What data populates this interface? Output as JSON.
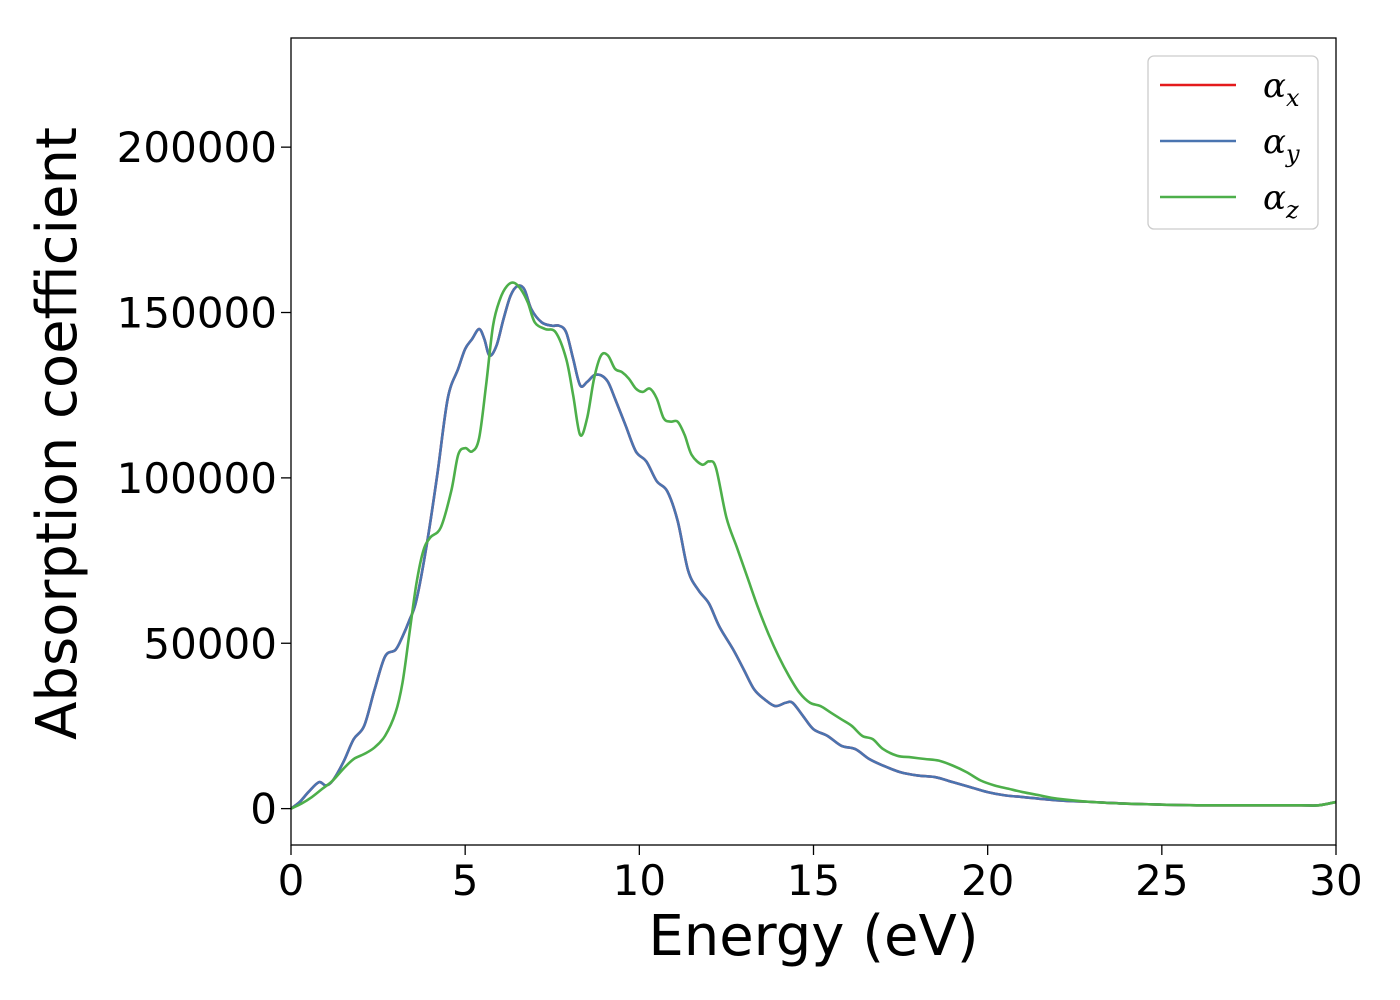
{
  "chart_data": {
    "type": "line",
    "title": "",
    "xlabel": "Energy (eV)",
    "ylabel": "Absorption coefficient",
    "xlim": [
      0,
      30
    ],
    "ylim": [
      -11000,
      233000
    ],
    "xticks": [
      0,
      5,
      10,
      15,
      20,
      25,
      30
    ],
    "yticks": [
      0,
      50000,
      100000,
      150000,
      200000
    ],
    "grid": false,
    "legend_position": "top-right",
    "series": [
      {
        "name": "α",
        "subscript": "x",
        "color": "#e41a1c",
        "x": [
          0,
          0.25,
          0.5,
          0.8,
          1.0,
          1.2,
          1.5,
          1.8,
          2.1,
          2.4,
          2.7,
          3.0,
          3.2,
          3.4,
          3.6,
          3.9,
          4.2,
          4.5,
          4.8,
          5.0,
          5.2,
          5.4,
          5.55,
          5.7,
          5.9,
          6.1,
          6.3,
          6.5,
          6.7,
          6.9,
          7.2,
          7.5,
          7.7,
          7.9,
          8.1,
          8.3,
          8.5,
          8.7,
          8.9,
          9.1,
          9.3,
          9.6,
          9.9,
          10.2,
          10.5,
          10.8,
          11.1,
          11.4,
          11.7,
          12.0,
          12.3,
          12.7,
          13.0,
          13.3,
          13.6,
          13.9,
          14.2,
          14.4,
          14.7,
          15.0,
          15.4,
          15.8,
          16.2,
          16.6,
          17.0,
          17.5,
          18.0,
          18.5,
          19.0,
          19.5,
          20.0,
          20.5,
          21.0,
          22.0,
          23.0,
          24.0,
          25.0,
          26.0,
          27.0,
          28.0,
          29.0,
          29.5,
          30.0
        ],
        "y": [
          0,
          2000,
          5000,
          8000,
          7000,
          8500,
          14000,
          21000,
          25000,
          36000,
          46000,
          48000,
          52000,
          57000,
          63000,
          80000,
          101000,
          124000,
          133000,
          139000,
          142000,
          145000,
          142000,
          137000,
          140000,
          148000,
          155000,
          158000,
          157000,
          151000,
          147000,
          146000,
          146000,
          144000,
          136000,
          128000,
          129000,
          131000,
          131000,
          129000,
          124000,
          116000,
          108000,
          105000,
          99000,
          96000,
          87000,
          72000,
          66000,
          62000,
          55000,
          48000,
          42000,
          36000,
          33000,
          31000,
          32000,
          32000,
          28000,
          24000,
          22000,
          19000,
          18000,
          15000,
          13000,
          11000,
          10000,
          9500,
          8000,
          6500,
          5000,
          4000,
          3500,
          2500,
          2000,
          1500,
          1200,
          1000,
          1000,
          1000,
          1000,
          1000,
          2000
        ]
      },
      {
        "name": "α",
        "subscript": "y",
        "color": "#4a74b0",
        "x": [
          0,
          0.25,
          0.5,
          0.8,
          1.0,
          1.2,
          1.5,
          1.8,
          2.1,
          2.4,
          2.7,
          3.0,
          3.2,
          3.4,
          3.6,
          3.9,
          4.2,
          4.5,
          4.8,
          5.0,
          5.2,
          5.4,
          5.55,
          5.7,
          5.9,
          6.1,
          6.3,
          6.5,
          6.7,
          6.9,
          7.2,
          7.5,
          7.7,
          7.9,
          8.1,
          8.3,
          8.5,
          8.7,
          8.9,
          9.1,
          9.3,
          9.6,
          9.9,
          10.2,
          10.5,
          10.8,
          11.1,
          11.4,
          11.7,
          12.0,
          12.3,
          12.7,
          13.0,
          13.3,
          13.6,
          13.9,
          14.2,
          14.4,
          14.7,
          15.0,
          15.4,
          15.8,
          16.2,
          16.6,
          17.0,
          17.5,
          18.0,
          18.5,
          19.0,
          19.5,
          20.0,
          20.5,
          21.0,
          22.0,
          23.0,
          24.0,
          25.0,
          26.0,
          27.0,
          28.0,
          29.0,
          29.5,
          30.0
        ],
        "y": [
          0,
          2000,
          5000,
          8000,
          7000,
          8500,
          14000,
          21000,
          25000,
          36000,
          46000,
          48000,
          52000,
          57000,
          63000,
          80000,
          101000,
          124000,
          133000,
          139000,
          142000,
          145000,
          142000,
          137000,
          140000,
          148000,
          155000,
          158000,
          157000,
          151000,
          147000,
          146000,
          146000,
          144000,
          136000,
          128000,
          129000,
          131000,
          131000,
          129000,
          124000,
          116000,
          108000,
          105000,
          99000,
          96000,
          87000,
          72000,
          66000,
          62000,
          55000,
          48000,
          42000,
          36000,
          33000,
          31000,
          32000,
          32000,
          28000,
          24000,
          22000,
          19000,
          18000,
          15000,
          13000,
          11000,
          10000,
          9500,
          8000,
          6500,
          5000,
          4000,
          3500,
          2500,
          2000,
          1500,
          1200,
          1000,
          1000,
          1000,
          1000,
          1000,
          2000
        ]
      },
      {
        "name": "α",
        "subscript": "z",
        "color": "#4daf4a",
        "x": [
          0,
          0.3,
          0.6,
          0.9,
          1.2,
          1.5,
          1.8,
          2.1,
          2.4,
          2.7,
          3.0,
          3.2,
          3.4,
          3.6,
          3.8,
          4.0,
          4.3,
          4.6,
          4.8,
          5.0,
          5.2,
          5.4,
          5.6,
          5.8,
          6.0,
          6.2,
          6.4,
          6.6,
          6.8,
          7.0,
          7.3,
          7.6,
          7.9,
          8.1,
          8.3,
          8.5,
          8.7,
          8.9,
          9.1,
          9.3,
          9.5,
          9.7,
          9.9,
          10.1,
          10.3,
          10.5,
          10.7,
          10.9,
          11.1,
          11.3,
          11.5,
          11.8,
          12.0,
          12.2,
          12.5,
          12.8,
          13.1,
          13.4,
          13.7,
          14.0,
          14.3,
          14.6,
          14.9,
          15.2,
          15.5,
          15.8,
          16.1,
          16.4,
          16.7,
          17.0,
          17.4,
          17.8,
          18.2,
          18.6,
          19.0,
          19.4,
          19.8,
          20.2,
          20.6,
          21.0,
          21.5,
          22.0,
          23.0,
          24.0,
          25.0,
          26.0,
          27.0,
          28.0,
          29.0,
          29.5,
          30.0
        ],
        "y": [
          0,
          1500,
          3500,
          6000,
          8500,
          12000,
          15000,
          16500,
          18500,
          22000,
          29000,
          38000,
          53000,
          68000,
          78000,
          82000,
          85000,
          96000,
          107000,
          109000,
          108000,
          112000,
          128000,
          146000,
          154000,
          158000,
          159000,
          157000,
          153000,
          147000,
          145000,
          144000,
          136000,
          125000,
          113000,
          118000,
          130000,
          137000,
          137000,
          133000,
          132000,
          130000,
          127000,
          126000,
          127000,
          124000,
          118000,
          117000,
          117000,
          113000,
          107000,
          104000,
          105000,
          103000,
          88000,
          79000,
          70000,
          61000,
          53000,
          46000,
          40000,
          35000,
          32000,
          31000,
          29000,
          27000,
          25000,
          22000,
          21000,
          18000,
          16000,
          15500,
          15000,
          14500,
          13000,
          11000,
          8500,
          7000,
          6000,
          5000,
          4000,
          3000,
          2000,
          1500,
          1200,
          1000,
          1000,
          1000,
          1000,
          1000,
          2000
        ]
      }
    ]
  }
}
